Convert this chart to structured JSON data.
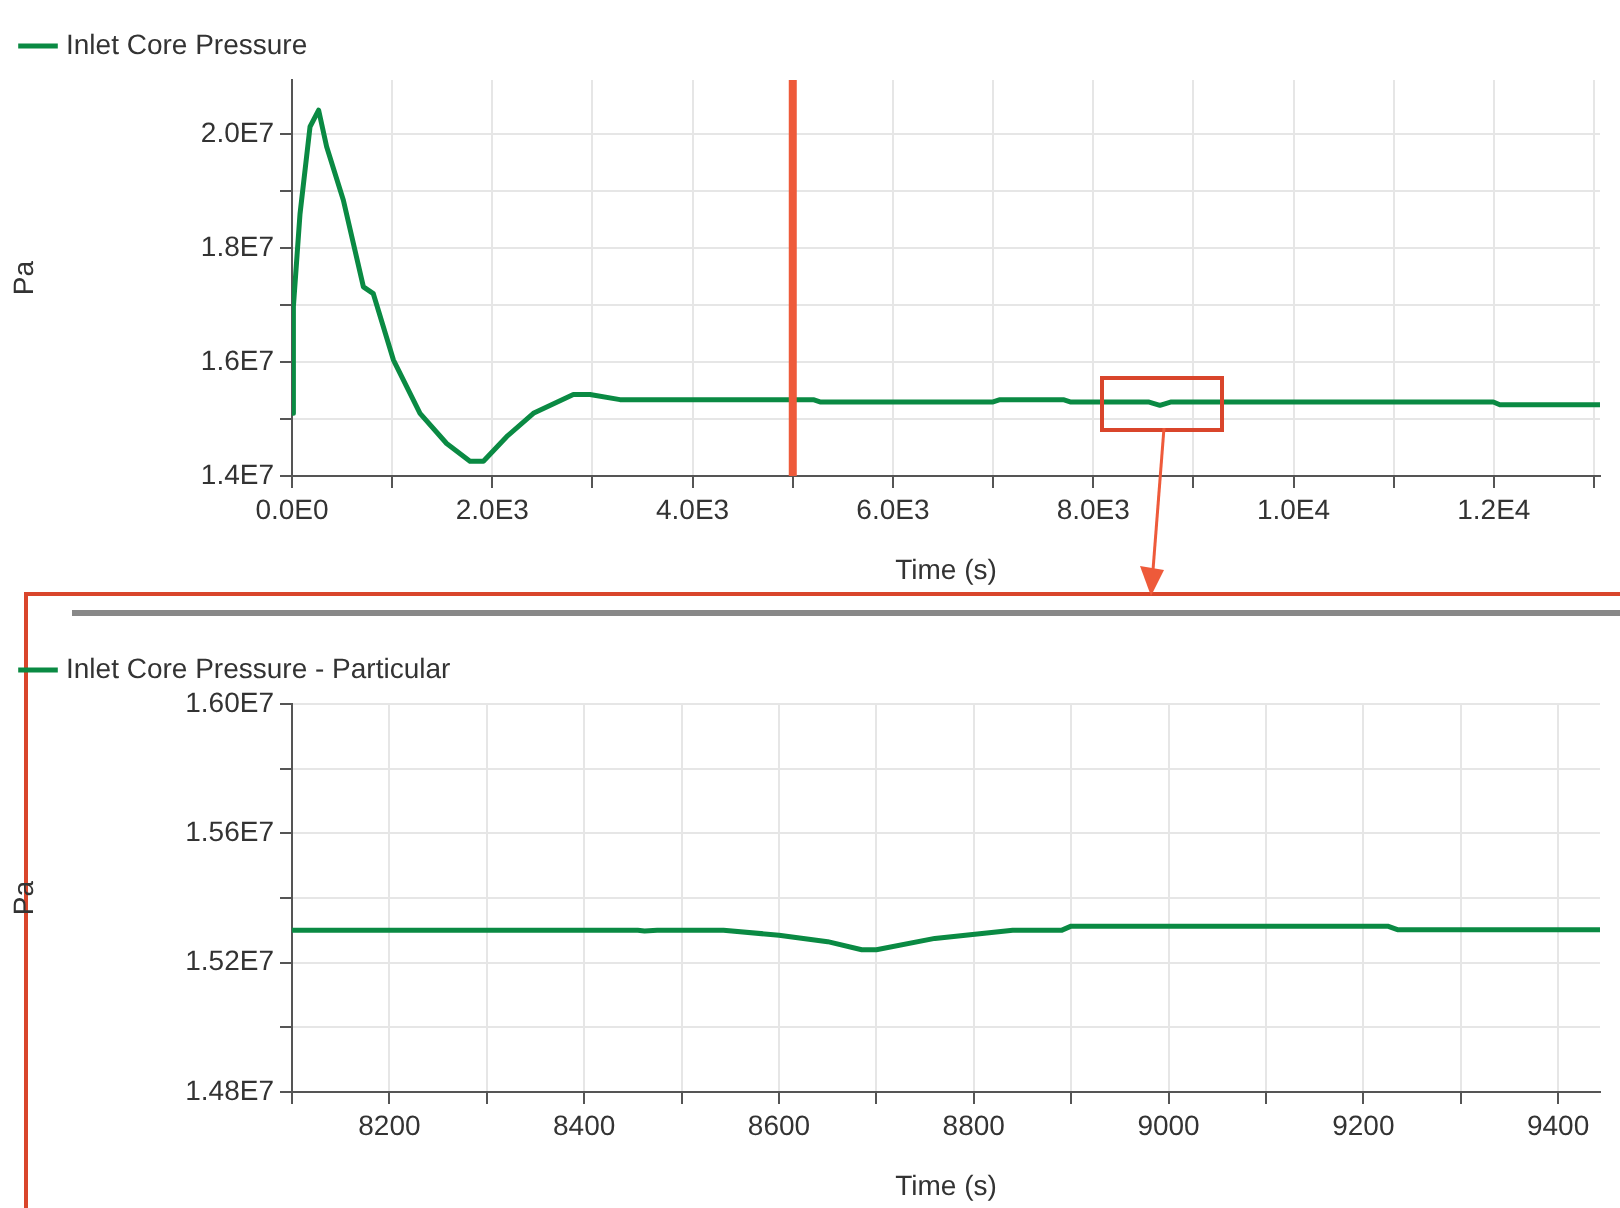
{
  "chart_data": [
    {
      "type": "line",
      "xlabel": "Time (s)",
      "ylabel": "Pa",
      "x": [
        0,
        14,
        80,
        180,
        266,
        346,
        513,
        713,
        812,
        1012,
        1278,
        1544,
        1777,
        1911,
        2143,
        2410,
        2809,
        2975,
        3275,
        5205,
        5272,
        7000,
        7069,
        7701,
        7770,
        8550,
        8666,
        8780,
        11995,
        12060,
        13060
      ],
      "series": [
        {
          "name": "Inlet Core Pressure",
          "color": "#0a8a43",
          "values": [
            15100000,
            16980000,
            18600000,
            20130000,
            20420000,
            19780000,
            18840000,
            17320000,
            17200000,
            16040000,
            15100000,
            14570000,
            14260000,
            14260000,
            14690000,
            15100000,
            15430000,
            15430000,
            15340000,
            15340000,
            15300000,
            15300000,
            15340000,
            15340000,
            15300000,
            15300000,
            15240000,
            15300000,
            15300000,
            15250000,
            15250000
          ]
        }
      ],
      "xlim": [
        0,
        13060
      ],
      "ylim": [
        14000000,
        20950000
      ],
      "xticks": [
        {
          "value": 0,
          "label": "0.0E0"
        },
        {
          "value": 1000,
          "label": null
        },
        {
          "value": 2000,
          "label": "2.0E3"
        },
        {
          "value": 3000,
          "label": null
        },
        {
          "value": 4000,
          "label": "4.0E3"
        },
        {
          "value": 5000,
          "label": null
        },
        {
          "value": 6000,
          "label": "6.0E3"
        },
        {
          "value": 7000,
          "label": null
        },
        {
          "value": 8000,
          "label": "8.0E3"
        },
        {
          "value": 9000,
          "label": null
        },
        {
          "value": 10000,
          "label": "1.0E4"
        },
        {
          "value": 11000,
          "label": null
        },
        {
          "value": 12000,
          "label": "1.2E4"
        },
        {
          "value": 13000,
          "label": null
        }
      ],
      "yticks": [
        {
          "value": 14000000,
          "label": "1.4E7"
        },
        {
          "value": 15000000,
          "label": null
        },
        {
          "value": 16000000,
          "label": "1.6E7"
        },
        {
          "value": 17000000,
          "label": null
        },
        {
          "value": 18000000,
          "label": "1.8E7"
        },
        {
          "value": 19000000,
          "label": null
        },
        {
          "value": 20000000,
          "label": "2.0E7"
        }
      ],
      "ref_lines": [
        {
          "axis": "x",
          "value": 5000,
          "color": "#ee5a3a"
        }
      ],
      "grid": true,
      "legend": "top left",
      "marker": "none",
      "line_style": "solid"
    },
    {
      "type": "line",
      "xlabel": "Time (s)",
      "ylabel": "Pa",
      "x": [
        8100,
        8455,
        8462,
        8475,
        8543,
        8600,
        8650,
        8685,
        8700,
        8760,
        8840,
        8890,
        8900,
        9225,
        9235,
        9443
      ],
      "series": [
        {
          "name": "Inlet Core Pressure - Particular",
          "color": "#0a8a43",
          "values": [
            15300000,
            15300000,
            15298000,
            15300000,
            15300000,
            15285000,
            15265000,
            15240000,
            15240000,
            15275000,
            15300000,
            15300000,
            15313000,
            15313000,
            15302000,
            15302000
          ]
        }
      ],
      "xlim": [
        8100,
        9443
      ],
      "ylim": [
        14800000,
        16000000
      ],
      "xticks": [
        {
          "value": 8100,
          "label": null
        },
        8200,
        {
          "value": 8300,
          "label": null
        },
        8400,
        {
          "value": 8500,
          "label": null
        },
        8600,
        {
          "value": 8700,
          "label": null
        },
        8800,
        {
          "value": 8900,
          "label": null
        },
        9000,
        {
          "value": 9100,
          "label": null
        },
        9200,
        {
          "value": 9300,
          "label": null
        },
        9400
      ],
      "yticks": [
        {
          "value": 14800000,
          "label": "1.48E7"
        },
        {
          "value": 15000000,
          "label": null
        },
        {
          "value": 15200000,
          "label": "1.52E7"
        },
        {
          "value": 15400000,
          "label": null
        },
        {
          "value": 15600000,
          "label": "1.56E7"
        },
        {
          "value": 15800000,
          "label": null
        },
        {
          "value": 16000000,
          "label": "1.60E7"
        }
      ],
      "grid": true,
      "legend": "top left",
      "marker": "none",
      "line_style": "solid"
    }
  ]
}
